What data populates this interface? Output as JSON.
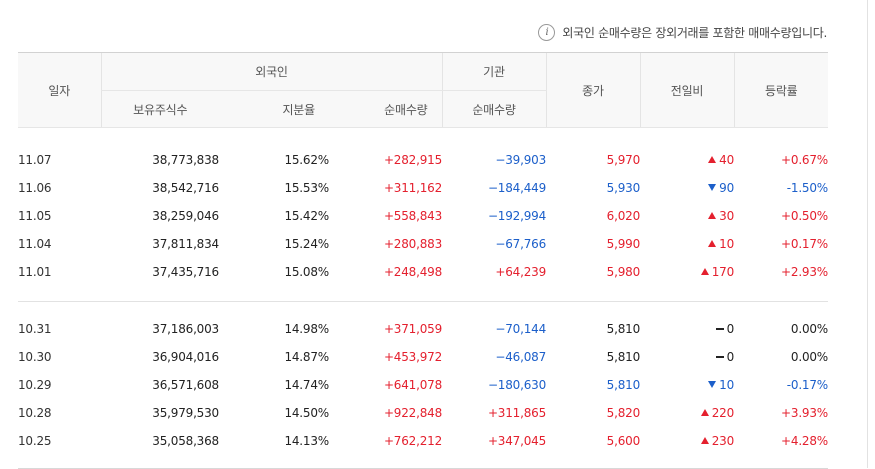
{
  "notice": {
    "icon": "info-icon",
    "text": "외국인 순매수량은 장외거래를 포함한 매매수량입니다."
  },
  "header": {
    "date": "일자",
    "foreign": "외국인",
    "institution": "기관",
    "close": "종가",
    "change": "전일비",
    "rate": "등락률",
    "holdings": "보유주식수",
    "ratio": "지분율",
    "foreign_net": "순매수량",
    "inst_net": "순매수량"
  },
  "colors": {
    "up": "#e4202e",
    "down": "#1c5fca",
    "flat": "#222222"
  },
  "groups": [
    {
      "rows": [
        {
          "date": "11.07",
          "holdings": "38,773,838",
          "ratio": "15.62%",
          "foreign_net": "+282,915",
          "inst_net": "−39,903",
          "close": "5,970",
          "change": "40",
          "dir": "up",
          "rate": "+0.67%"
        },
        {
          "date": "11.06",
          "holdings": "38,542,716",
          "ratio": "15.53%",
          "foreign_net": "+311,162",
          "inst_net": "−184,449",
          "close": "5,930",
          "change": "90",
          "dir": "down",
          "rate": "-1.50%"
        },
        {
          "date": "11.05",
          "holdings": "38,259,046",
          "ratio": "15.42%",
          "foreign_net": "+558,843",
          "inst_net": "−192,994",
          "close": "6,020",
          "change": "30",
          "dir": "up",
          "rate": "+0.50%"
        },
        {
          "date": "11.04",
          "holdings": "37,811,834",
          "ratio": "15.24%",
          "foreign_net": "+280,883",
          "inst_net": "−67,766",
          "close": "5,990",
          "change": "10",
          "dir": "up",
          "rate": "+0.17%"
        },
        {
          "date": "11.01",
          "holdings": "37,435,716",
          "ratio": "15.08%",
          "foreign_net": "+248,498",
          "inst_net": "+64,239",
          "close": "5,980",
          "change": "170",
          "dir": "up",
          "rate": "+2.93%"
        }
      ]
    },
    {
      "rows": [
        {
          "date": "10.31",
          "holdings": "37,186,003",
          "ratio": "14.98%",
          "foreign_net": "+371,059",
          "inst_net": "−70,144",
          "close": "5,810",
          "change": "0",
          "dir": "flat",
          "rate": "0.00%"
        },
        {
          "date": "10.30",
          "holdings": "36,904,016",
          "ratio": "14.87%",
          "foreign_net": "+453,972",
          "inst_net": "−46,087",
          "close": "5,810",
          "change": "0",
          "dir": "flat",
          "rate": "0.00%"
        },
        {
          "date": "10.29",
          "holdings": "36,571,608",
          "ratio": "14.74%",
          "foreign_net": "+641,078",
          "inst_net": "−180,630",
          "close": "5,810",
          "change": "10",
          "dir": "down",
          "rate": "-0.17%"
        },
        {
          "date": "10.28",
          "holdings": "35,979,530",
          "ratio": "14.50%",
          "foreign_net": "+922,848",
          "inst_net": "+311,865",
          "close": "5,820",
          "change": "220",
          "dir": "up",
          "rate": "+3.93%"
        },
        {
          "date": "10.25",
          "holdings": "35,058,368",
          "ratio": "14.13%",
          "foreign_net": "+762,212",
          "inst_net": "+347,045",
          "close": "5,600",
          "change": "230",
          "dir": "up",
          "rate": "+4.28%"
        }
      ]
    }
  ]
}
